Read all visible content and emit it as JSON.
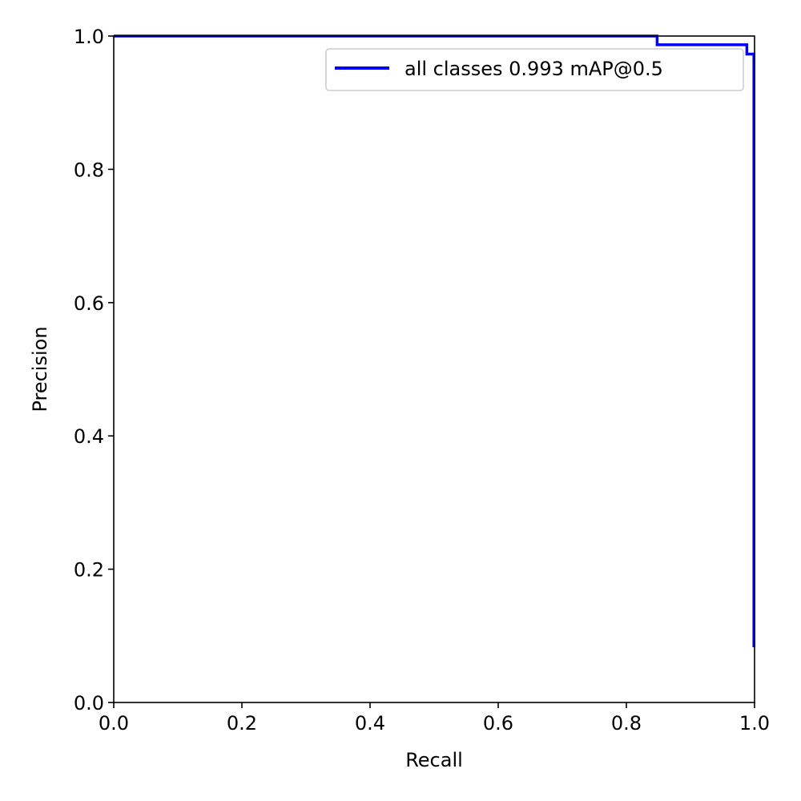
{
  "chart_data": {
    "type": "line",
    "title": "",
    "xlabel": "Recall",
    "ylabel": "Precision",
    "xlim": [
      0.0,
      1.0
    ],
    "ylim": [
      0.0,
      1.0
    ],
    "grid": false,
    "legend_position": "top-right",
    "x_ticks": [
      0.0,
      0.2,
      0.4,
      0.6,
      0.8,
      1.0
    ],
    "y_ticks": [
      0.0,
      0.2,
      0.4,
      0.6,
      0.8,
      1.0
    ],
    "x_tick_labels": [
      "0.0",
      "0.2",
      "0.4",
      "0.6",
      "0.8",
      "1.0"
    ],
    "y_tick_labels": [
      "0.0",
      "0.2",
      "0.4",
      "0.6",
      "0.8",
      "1.0"
    ],
    "series": [
      {
        "name": "all classes 0.993 mAP@0.5",
        "color": "#0000ff",
        "step": true,
        "x": [
          0.0,
          0.848,
          0.848,
          0.988,
          0.988,
          0.999,
          0.999
        ],
        "y": [
          1.0,
          1.0,
          0.987,
          0.987,
          0.973,
          0.973,
          0.083
        ]
      }
    ]
  }
}
